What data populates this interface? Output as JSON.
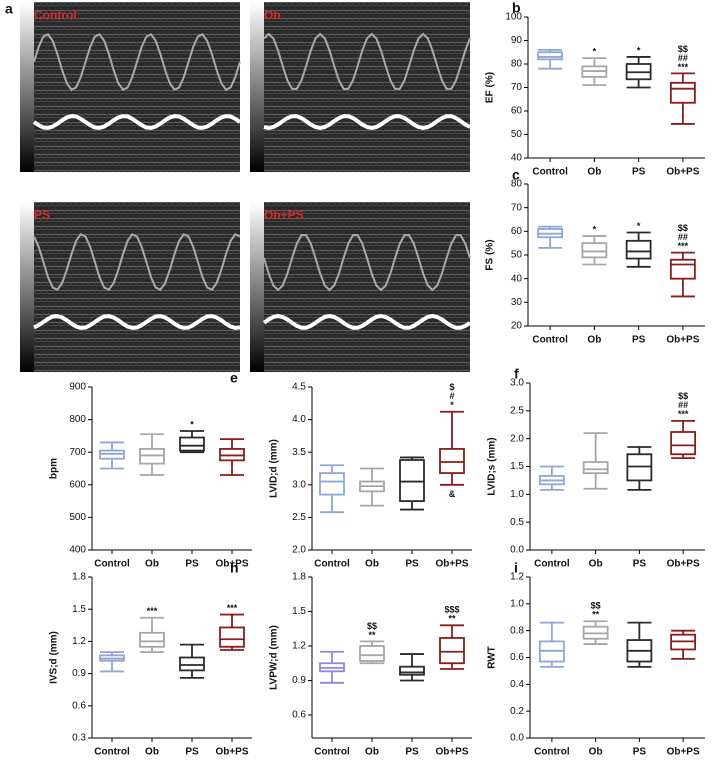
{
  "figure": {
    "panel": "a",
    "images": [
      {
        "label": "Control"
      },
      {
        "label": "Ob"
      },
      {
        "label": "PS"
      },
      {
        "label": "Ob+PS"
      }
    ]
  },
  "chart_data": [
    {
      "type": "box",
      "panel": "b",
      "ylabel": "EF (%)",
      "categories": [
        "Control",
        "Ob",
        "PS",
        "Ob+PS"
      ],
      "colors": [
        "#8fa6d6",
        "#a6a6a6",
        "#2a2a2a",
        "#8b1c1c"
      ],
      "boxes": [
        {
          "min": 78,
          "q1": 82,
          "median": 83,
          "q3": 85,
          "max": 86
        },
        {
          "min": 71,
          "q1": 74.5,
          "median": 77,
          "q3": 79,
          "max": 82.5
        },
        {
          "min": 70,
          "q1": 73.5,
          "median": 76.5,
          "q3": 80,
          "max": 83
        },
        {
          "min": 54.5,
          "q1": 63.5,
          "median": 69.5,
          "q3": 72,
          "max": 76
        }
      ],
      "ylim": [
        40,
        100
      ],
      "yticks": [
        40,
        50,
        60,
        70,
        80,
        90,
        100
      ],
      "annotations": [
        {
          "category": "Ob",
          "lines": [
            "*"
          ]
        },
        {
          "category": "PS",
          "lines": [
            "*"
          ]
        },
        {
          "category": "Ob+PS",
          "lines": [
            "$$",
            "##",
            "***"
          ]
        }
      ]
    },
    {
      "type": "box",
      "panel": "c",
      "ylabel": "FS (%)",
      "categories": [
        "Control",
        "Ob",
        "PS",
        "Ob+PS"
      ],
      "colors": [
        "#8fa6d6",
        "#a6a6a6",
        "#2a2a2a",
        "#8b1c1c"
      ],
      "boxes": [
        {
          "min": 53,
          "q1": 57.5,
          "median": 59,
          "q3": 61,
          "max": 62
        },
        {
          "min": 46,
          "q1": 49,
          "median": 51.5,
          "q3": 55,
          "max": 58
        },
        {
          "min": 45,
          "q1": 48.5,
          "median": 51.5,
          "q3": 56,
          "max": 59.5
        },
        {
          "min": 32.5,
          "q1": 40,
          "median": 46,
          "q3": 48,
          "max": 51
        }
      ],
      "ylim": [
        20,
        80
      ],
      "yticks": [
        20,
        30,
        40,
        50,
        60,
        70,
        80
      ],
      "annotations": [
        {
          "category": "Ob",
          "lines": [
            "*"
          ]
        },
        {
          "category": "PS",
          "lines": [
            "*"
          ]
        },
        {
          "category": "Ob+PS",
          "lines": [
            "$$",
            "##",
            "***"
          ]
        }
      ]
    },
    {
      "type": "box",
      "panel": "d",
      "ylabel": "bpm",
      "categories": [
        "Control",
        "Ob",
        "PS",
        "Ob+PS"
      ],
      "colors": [
        "#8fa6d6",
        "#a6a6a6",
        "#2a2a2a",
        "#8b1c1c"
      ],
      "boxes": [
        {
          "min": 650,
          "q1": 680,
          "median": 695,
          "q3": 705,
          "max": 730
        },
        {
          "min": 630,
          "q1": 665,
          "median": 690,
          "q3": 710,
          "max": 755
        },
        {
          "min": 700,
          "q1": 705,
          "median": 720,
          "q3": 745,
          "max": 765
        },
        {
          "min": 630,
          "q1": 675,
          "median": 690,
          "q3": 710,
          "max": 740
        }
      ],
      "ylim": [
        400,
        900
      ],
      "yticks": [
        400,
        500,
        600,
        700,
        800,
        900
      ],
      "annotations": [
        {
          "category": "PS",
          "lines": [
            "*"
          ]
        }
      ]
    },
    {
      "type": "box",
      "panel": "e",
      "ylabel": "LVID;d (mm)",
      "categories": [
        "Control",
        "Ob",
        "PS",
        "Ob+PS"
      ],
      "colors": [
        "#8fa6d6",
        "#a6a6a6",
        "#2a2a2a",
        "#8b1c1c"
      ],
      "boxes": [
        {
          "min": 2.58,
          "q1": 2.85,
          "median": 3.05,
          "q3": 3.18,
          "max": 3.3
        },
        {
          "min": 2.68,
          "q1": 2.9,
          "median": 2.98,
          "q3": 3.05,
          "max": 3.25
        },
        {
          "min": 2.62,
          "q1": 2.75,
          "median": 3.05,
          "q3": 3.38,
          "max": 3.42
        },
        {
          "min": 3.0,
          "q1": 3.18,
          "median": 3.35,
          "q3": 3.55,
          "max": 4.12
        }
      ],
      "ylim": [
        2,
        4.5
      ],
      "yticks": [
        {
          "value": 2,
          "label": "2.0"
        },
        2.5,
        {
          "value": 3,
          "label": "3.0"
        },
        3.5,
        {
          "value": 4,
          "label": "4.0"
        },
        4.5
      ],
      "annotations": [
        {
          "category": "Ob+PS",
          "lines": [
            "$",
            "#",
            "*"
          ]
        },
        {
          "category": "Ob+PS",
          "lines": [
            "&"
          ],
          "position": "below"
        }
      ]
    },
    {
      "type": "box",
      "panel": "f",
      "ylabel": "LVID;s (mm)",
      "categories": [
        "Control",
        "Ob",
        "PS",
        "Ob+PS"
      ],
      "colors": [
        "#8fa6d6",
        "#a6a6a6",
        "#2a2a2a",
        "#8b1c1c"
      ],
      "boxes": [
        {
          "min": 1.08,
          "q1": 1.18,
          "median": 1.25,
          "q3": 1.33,
          "max": 1.5
        },
        {
          "min": 1.1,
          "q1": 1.38,
          "median": 1.45,
          "q3": 1.58,
          "max": 2.1
        },
        {
          "min": 1.08,
          "q1": 1.25,
          "median": 1.5,
          "q3": 1.72,
          "max": 1.85
        },
        {
          "min": 1.65,
          "q1": 1.72,
          "median": 1.88,
          "q3": 2.12,
          "max": 2.32
        }
      ],
      "ylim": [
        0,
        3
      ],
      "yticks": [
        {
          "value": 0,
          "label": "0.0"
        },
        0.5,
        {
          "value": 1,
          "label": "1.0"
        },
        1.5,
        {
          "value": 2,
          "label": "2.0"
        },
        2.5,
        {
          "value": 3,
          "label": "3.0"
        }
      ],
      "annotations": [
        {
          "category": "Ob+PS",
          "lines": [
            "$$",
            "##",
            "***"
          ]
        }
      ]
    },
    {
      "type": "box",
      "panel": "g",
      "ylabel": "IVS;d (mm)",
      "categories": [
        "Control",
        "Ob",
        "PS",
        "Ob+PS"
      ],
      "colors": [
        "#8fa6d6",
        "#a6a6a6",
        "#2a2a2a",
        "#8b1c1c"
      ],
      "boxes": [
        {
          "min": 0.92,
          "q1": 1.02,
          "median": 1.04,
          "q3": 1.07,
          "max": 1.1
        },
        {
          "min": 1.1,
          "q1": 1.15,
          "median": 1.2,
          "q3": 1.28,
          "max": 1.42
        },
        {
          "min": 0.86,
          "q1": 0.93,
          "median": 0.98,
          "q3": 1.05,
          "max": 1.17
        },
        {
          "min": 1.12,
          "q1": 1.15,
          "median": 1.22,
          "q3": 1.33,
          "max": 1.45
        }
      ],
      "ylim": [
        0.3,
        1.8
      ],
      "yticks": [
        0.3,
        0.6,
        0.9,
        1.2,
        1.5,
        1.8
      ],
      "annotations": [
        {
          "category": "Ob",
          "lines": [
            "***"
          ]
        },
        {
          "category": "Ob+PS",
          "lines": [
            "***"
          ]
        }
      ]
    },
    {
      "type": "box",
      "panel": "h",
      "ylabel": "LVPW;d (mm)",
      "categories": [
        "Control",
        "Ob",
        "PS",
        "Ob+PS"
      ],
      "colors": [
        "#8f86e6",
        "#a6a6a6",
        "#2a2a2a",
        "#8b1c1c"
      ],
      "boxes": [
        {
          "min": 0.88,
          "q1": 0.98,
          "median": 1.01,
          "q3": 1.05,
          "max": 1.15
        },
        {
          "min": 1.05,
          "q1": 1.07,
          "median": 1.12,
          "q3": 1.2,
          "max": 1.24
        },
        {
          "min": 0.9,
          "q1": 0.95,
          "median": 0.97,
          "q3": 1.02,
          "max": 1.13
        },
        {
          "min": 1.0,
          "q1": 1.05,
          "median": 1.15,
          "q3": 1.27,
          "max": 1.38
        }
      ],
      "ylim": [
        0.4,
        1.8
      ],
      "yticks": [
        0.6,
        0.9,
        1.2,
        1.5,
        1.8
      ],
      "annotations": [
        {
          "category": "Ob",
          "lines": [
            "$$",
            "**"
          ]
        },
        {
          "category": "Ob+PS",
          "lines": [
            "$$$",
            "**"
          ]
        }
      ]
    },
    {
      "type": "box",
      "panel": "i",
      "ylabel": "RWT",
      "categories": [
        "Control",
        "Ob",
        "PS",
        "Ob+PS"
      ],
      "colors": [
        "#8fa6d6",
        "#a6a6a6",
        "#2a2a2a",
        "#8b1c1c"
      ],
      "boxes": [
        {
          "min": 0.53,
          "q1": 0.57,
          "median": 0.65,
          "q3": 0.72,
          "max": 0.86
        },
        {
          "min": 0.7,
          "q1": 0.74,
          "median": 0.78,
          "q3": 0.83,
          "max": 0.87
        },
        {
          "min": 0.53,
          "q1": 0.57,
          "median": 0.65,
          "q3": 0.73,
          "max": 0.86
        },
        {
          "min": 0.59,
          "q1": 0.66,
          "median": 0.72,
          "q3": 0.77,
          "max": 0.8
        }
      ],
      "ylim": [
        0,
        1.2
      ],
      "yticks": [
        {
          "value": 0,
          "label": "0.0"
        },
        0.2,
        0.4,
        0.6,
        0.8,
        {
          "value": 1,
          "label": "1.0"
        },
        1.2
      ],
      "annotations": [
        {
          "category": "Ob",
          "lines": [
            "$$",
            "**"
          ]
        }
      ]
    }
  ]
}
